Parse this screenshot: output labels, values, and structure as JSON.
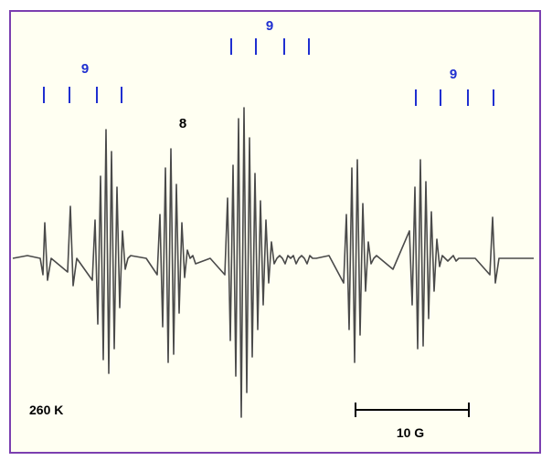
{
  "chart_data": {
    "type": "line",
    "title": "",
    "xlabel": "",
    "ylabel": "",
    "grid": false,
    "legend": "none",
    "temperature_label": "260 K",
    "scale_bar_label": "10 G",
    "annotations": [
      {
        "text": "9",
        "group": "left",
        "tick_x": [
          48,
          76,
          106,
          133
        ]
      },
      {
        "text": "9",
        "group": "center",
        "tick_x": [
          253,
          280,
          311,
          338
        ]
      },
      {
        "text": "9",
        "group": "right",
        "tick_x": [
          455,
          482,
          512,
          540
        ]
      },
      {
        "text": "8",
        "group": "component"
      }
    ],
    "series": [
      {
        "x": [
          14,
          30,
          44,
          47,
          49,
          52,
          56,
          74,
          77,
          80,
          84,
          101,
          104,
          107,
          110,
          113,
          116,
          119,
          122,
          125,
          128,
          131,
          134,
          137,
          140,
          143,
          160,
          172,
          175,
          178,
          181,
          184,
          187,
          190,
          193,
          196,
          199,
          202,
          205,
          208,
          211,
          214,
          230,
          246,
          249,
          252,
          255,
          258,
          261,
          264,
          267,
          270,
          273,
          276,
          279,
          282,
          285,
          288,
          291,
          294,
          297,
          300,
          303,
          306,
          309,
          312,
          315,
          318,
          321,
          324,
          327,
          330,
          333,
          336,
          339,
          342,
          346,
          360,
          376,
          379,
          382,
          385,
          388,
          391,
          394,
          397,
          400,
          403,
          406,
          409,
          412,
          430,
          448,
          451,
          454,
          457,
          460,
          463,
          466,
          469,
          472,
          475,
          478,
          481,
          484,
          487,
          490,
          493,
          496,
          499,
          502,
          505,
          508,
          511,
          514,
          517,
          520,
          536,
          539,
          542,
          546,
          560,
          584
        ],
        "y": [
          0,
          1,
          0,
          -6,
          13,
          -8,
          0,
          -5,
          19,
          -10,
          0,
          -8,
          14,
          -24,
          30,
          -37,
          47,
          -42,
          39,
          -33,
          26,
          -18,
          10,
          -4,
          0,
          1,
          0,
          -6,
          16,
          -25,
          33,
          -38,
          40,
          -35,
          27,
          -20,
          13,
          -7,
          3,
          0,
          1,
          -2,
          0,
          -6,
          22,
          -30,
          34,
          -43,
          51,
          -58,
          55,
          -49,
          44,
          -36,
          31,
          -26,
          21,
          -17,
          14,
          -9,
          6,
          -2,
          0,
          1,
          0,
          -2,
          1,
          0,
          1,
          -2,
          0,
          1,
          0,
          -2,
          1,
          0,
          0,
          1,
          -9,
          16,
          -26,
          33,
          -38,
          36,
          -28,
          20,
          -12,
          6,
          -2,
          0,
          1,
          -4,
          10,
          -17,
          26,
          -33,
          36,
          -32,
          28,
          -22,
          17,
          -12,
          7,
          -3,
          1,
          0,
          -1,
          0,
          1,
          -1,
          0,
          0,
          0,
          0,
          0,
          0,
          0,
          -6,
          15,
          -9,
          0,
          0,
          0
        ]
      }
    ],
    "xlim": [
      0,
      604
    ],
    "ylim": [
      -60,
      60
    ]
  }
}
